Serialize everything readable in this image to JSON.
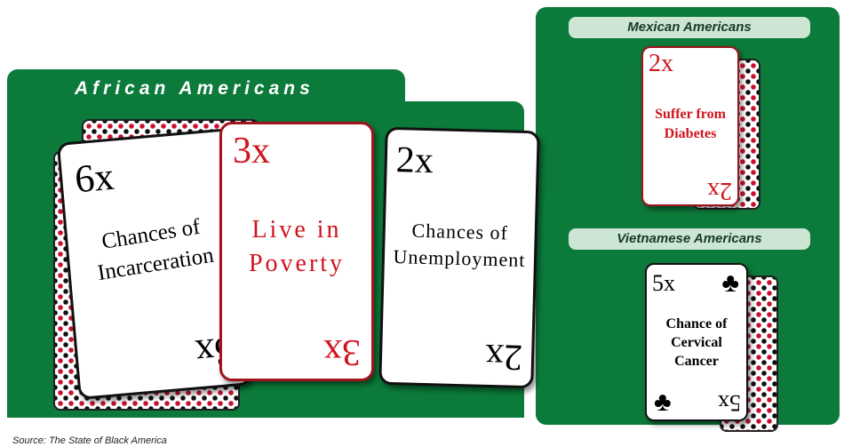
{
  "groups": [
    {
      "title": "African Americans",
      "cards": [
        {
          "multiplier": "6x",
          "lines": [
            "Chances of",
            "Incarceration"
          ]
        },
        {
          "multiplier": "3x",
          "lines": [
            "Live in",
            "Poverty"
          ]
        },
        {
          "multiplier": "2x",
          "lines": [
            "Chances of",
            "Unemployment"
          ]
        }
      ]
    },
    {
      "title": "Mexican Americans",
      "cards": [
        {
          "multiplier": "2x",
          "lines": [
            "Suffer from",
            "Diabetes"
          ]
        }
      ]
    },
    {
      "title": "Vietnamese Americans",
      "cards": [
        {
          "multiplier": "5x",
          "lines": [
            "Chance of",
            "Cervical",
            "Cancer"
          ]
        }
      ]
    }
  ],
  "source": "Source: The State of Black America"
}
